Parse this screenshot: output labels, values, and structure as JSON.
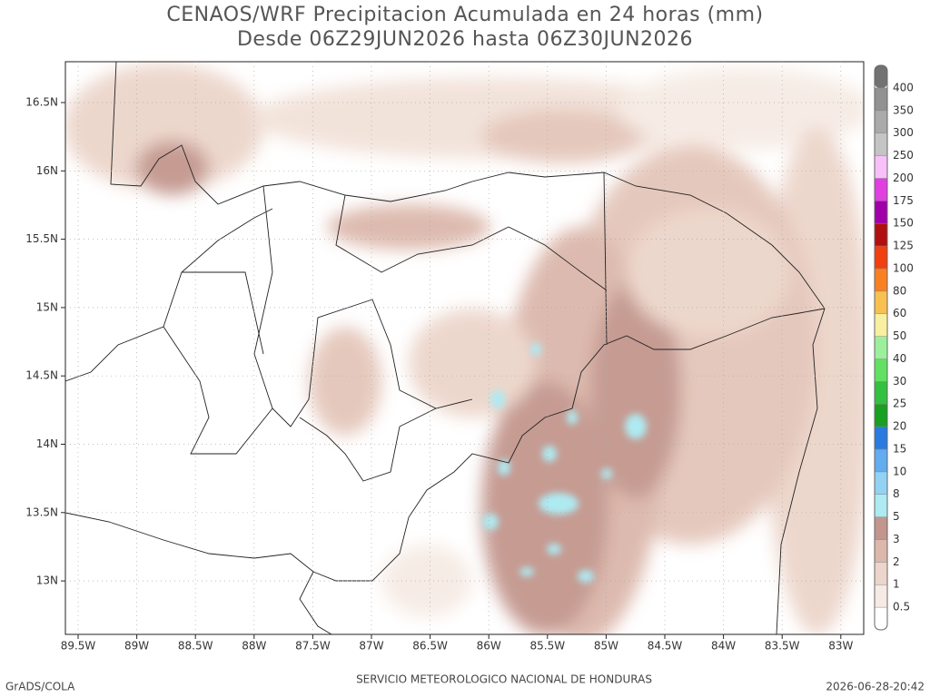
{
  "header": {
    "title": [
      "CENAOS/WRF Precipitacion Acumulada en 24 horas (mm)",
      "Desde 06Z29JUN2026 hasta 06Z30JUN2026"
    ]
  },
  "map": {
    "lon_labels": [
      "89.5W",
      "89W",
      "88.5W",
      "88W",
      "87.5W",
      "87W",
      "86.5W",
      "86W",
      "85.5W",
      "85W",
      "84.5W",
      "84W",
      "83.5W",
      "83W"
    ],
    "lat_labels": [
      "16.5N",
      "16N",
      "15.5N",
      "15N",
      "14.5N",
      "14N",
      "13.5N",
      "13N"
    ]
  },
  "colorbar": {
    "labels": [
      "0.5",
      "1",
      "2",
      "3",
      "5",
      "8",
      "10",
      "15",
      "20",
      "25",
      "30",
      "40",
      "50",
      "60",
      "80",
      "100",
      "125",
      "150",
      "175",
      "200",
      "250",
      "300",
      "350",
      "400"
    ],
    "colors": [
      "#ffffff",
      "#f6ebe4",
      "#ecd5ca",
      "#dcb7ab",
      "#c3968d",
      "#aeeaf2",
      "#92d2f2",
      "#62acf0",
      "#2a7ae0",
      "#18a020",
      "#34c040",
      "#62e062",
      "#9cf09c",
      "#f8f0a0",
      "#f8c050",
      "#f88020",
      "#f04010",
      "#b01010",
      "#a000a8",
      "#e040e0",
      "#f8c0f8",
      "#c4c4c4",
      "#aaaaaa",
      "#929292",
      "#727272"
    ]
  },
  "footer": {
    "left": "GrADS/COLA",
    "center": "SERVICIO METEOROLOGICO NACIONAL DE HONDURAS",
    "right": "2026-06-28-20:42"
  }
}
